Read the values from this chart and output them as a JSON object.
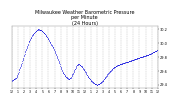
{
  "title": "Milwaukee Weather Barometric Pressure\nper Minute\n(24 Hours)",
  "title_fontsize": 3.5,
  "bg_color": "#ffffff",
  "dot_color": "#0000dd",
  "dot_size": 0.8,
  "grid_color": "#bbbbbb",
  "tick_label_fontsize": 2.5,
  "ylabel_fontsize": 2.5,
  "xlabel_fontsize": 2.3,
  "ylim": [
    29.35,
    30.25
  ],
  "yticks": [
    29.4,
    29.6,
    29.8,
    30.0,
    30.2
  ],
  "ytick_labels": [
    "29.4",
    "29.6",
    "29.8",
    "30.0",
    "30.2"
  ],
  "x_tick_positions": [
    0,
    60,
    120,
    180,
    240,
    300,
    360,
    420,
    480,
    540,
    600,
    660,
    720,
    780,
    840,
    900,
    960,
    1020,
    1080,
    1140,
    1200,
    1260,
    1320,
    1380,
    1439
  ],
  "x_tick_labels": [
    "12",
    "1",
    "2",
    "3",
    "4",
    "5",
    "6",
    "7",
    "8",
    "9",
    "10",
    "11",
    "12",
    "1",
    "2",
    "3",
    "4",
    "5",
    "6",
    "7",
    "8",
    "9",
    "10",
    "11",
    "12"
  ],
  "key_x": [
    0,
    40,
    80,
    110,
    140,
    170,
    200,
    230,
    260,
    290,
    320,
    350,
    380,
    410,
    440,
    470,
    500,
    530,
    560,
    580,
    600,
    620,
    640,
    660,
    690,
    720,
    750,
    780,
    810,
    840,
    870,
    900,
    930,
    960,
    1000,
    1040,
    1080,
    1120,
    1160,
    1200,
    1240,
    1280,
    1320,
    1360,
    1400,
    1439
  ],
  "key_y": [
    29.46,
    29.5,
    29.65,
    29.78,
    29.92,
    30.03,
    30.11,
    30.17,
    30.2,
    30.18,
    30.14,
    30.08,
    30.0,
    29.92,
    29.82,
    29.7,
    29.58,
    29.52,
    29.48,
    29.5,
    29.56,
    29.62,
    29.68,
    29.7,
    29.66,
    29.6,
    29.52,
    29.46,
    29.42,
    29.4,
    29.42,
    29.46,
    29.52,
    29.58,
    29.64,
    29.68,
    29.7,
    29.72,
    29.74,
    29.76,
    29.78,
    29.8,
    29.82,
    29.84,
    29.87,
    29.9
  ]
}
